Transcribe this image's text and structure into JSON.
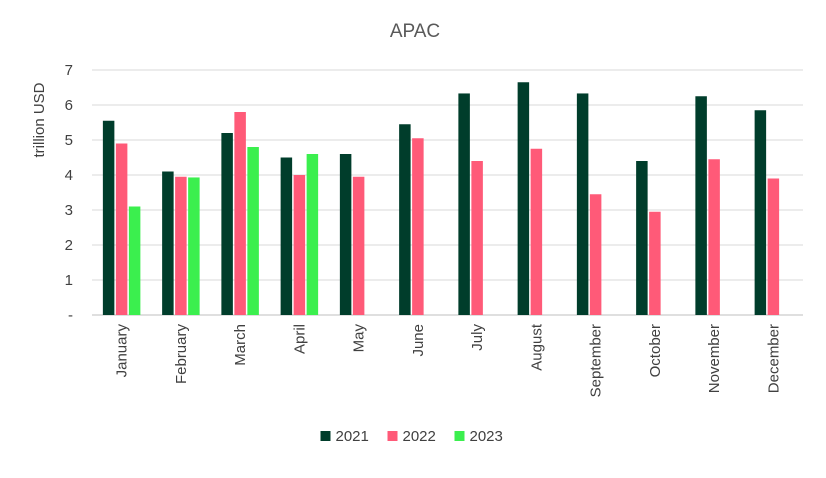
{
  "chart_data": {
    "type": "bar",
    "title": "APAC",
    "xlabel": "",
    "ylabel": "trillion USD",
    "ylim": [
      0,
      7
    ],
    "y_ticks": [
      "-",
      "1",
      "2",
      "3",
      "4",
      "5",
      "6",
      "7"
    ],
    "grid": true,
    "legend_position": "bottom",
    "categories": [
      "January",
      "February",
      "March",
      "April",
      "May",
      "June",
      "July",
      "August",
      "September",
      "October",
      "November",
      "December"
    ],
    "series": [
      {
        "name": "2021",
        "color": "#003d2b",
        "values": [
          5.55,
          4.1,
          5.2,
          4.5,
          4.6,
          5.45,
          6.33,
          6.65,
          6.33,
          4.4,
          6.25,
          5.85
        ]
      },
      {
        "name": "2022",
        "color": "#ff5a78",
        "values": [
          4.9,
          3.95,
          5.8,
          4.0,
          3.95,
          5.05,
          4.4,
          4.75,
          3.45,
          2.95,
          4.45,
          3.9
        ]
      },
      {
        "name": "2023",
        "color": "#3bef4e",
        "values": [
          3.1,
          3.93,
          4.8,
          4.6,
          null,
          null,
          null,
          null,
          null,
          null,
          null,
          null
        ]
      }
    ]
  }
}
